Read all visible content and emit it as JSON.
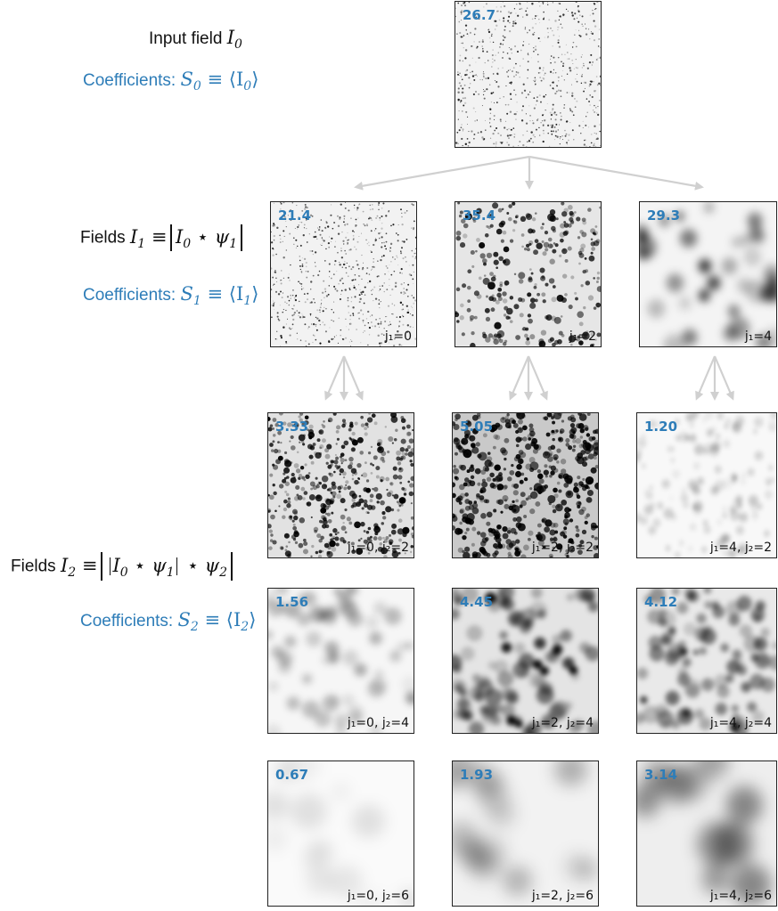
{
  "labels": {
    "input_field": "Input field",
    "input_sym": "I",
    "input_sub": "0",
    "coef_text": "Coefficients:",
    "coef0_lhs": "S",
    "coef0_sub": "0",
    "coef0_rhs": "⟨I",
    "coef0_rsub": "0",
    "fields1_text": "Fields",
    "fields1_lhs": "I",
    "fields1_sub": "1",
    "fields1_eq": "≡",
    "fields1_expr_a": "I",
    "fields1_expr_asub": "0",
    "fields1_star": "⋆",
    "fields1_psi": "ψ",
    "fields1_psisub": "1",
    "coef1_lhs": "S",
    "coef1_sub": "1",
    "coef1_rhs": "⟨I",
    "coef1_rsub": "1",
    "fields2_text": "Fields",
    "fields2_lhs": "I",
    "fields2_sub": "2",
    "fields2_psi2": "ψ",
    "fields2_psi2sub": "2",
    "coef2_lhs": "S",
    "coef2_sub": "2",
    "coef2_rhs": "⟨I",
    "coef2_rsub": "2",
    "close_angle": "⟩",
    "equiv": "≡"
  },
  "panels": {
    "p0": {
      "value": "26.7",
      "subscript": ""
    },
    "p10": {
      "value": "21.4",
      "subscript": "j₁=0"
    },
    "p12": {
      "value": "35.4",
      "subscript": "j₁=2"
    },
    "p14": {
      "value": "29.3",
      "subscript": "j₁=4"
    },
    "p202": {
      "value": "3.33",
      "subscript": "j₁=0, j₂=2"
    },
    "p222": {
      "value": "5.05",
      "subscript": "j₁=2, j₂=2"
    },
    "p242": {
      "value": "1.20",
      "subscript": "j₁=4, j₂=2"
    },
    "p204": {
      "value": "1.56",
      "subscript": "j₁=0, j₂=4"
    },
    "p224": {
      "value": "4.45",
      "subscript": "j₁=2, j₂=4"
    },
    "p244": {
      "value": "4.12",
      "subscript": "j₁=4, j₂=4"
    },
    "p206": {
      "value": "0.67",
      "subscript": "j₁=0, j₂=6"
    },
    "p226": {
      "value": "1.93",
      "subscript": "j₁=2, j₂=6"
    },
    "p246": {
      "value": "3.14",
      "subscript": "j₁=4, j₂=6"
    }
  },
  "colors": {
    "accent": "#2e7db8",
    "arrow": "#d0d0d0"
  }
}
